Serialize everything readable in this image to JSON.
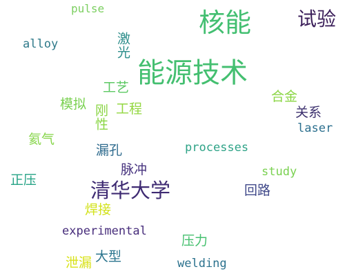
{
  "words": {
    "pulse": {
      "text": "pulse",
      "color": "#7ccf61"
    },
    "hexin": {
      "text": "核能",
      "color": "#43bf71"
    },
    "shiyan": {
      "text": "试验",
      "color": "#3b1f5a"
    },
    "alloy": {
      "text": "alloy",
      "color": "#2f7a8a"
    },
    "jiguang": {
      "text": "激光",
      "color": "#2c8d8a"
    },
    "nengyuan": {
      "text": "能源技术",
      "color": "#44bf70"
    },
    "gongyi": {
      "text": "工艺",
      "color": "#5cc863"
    },
    "hejin": {
      "text": "合金",
      "color": "#8bd646"
    },
    "moni": {
      "text": "模拟",
      "color": "#7ad151"
    },
    "gangxing": {
      "text": "刚性",
      "color": "#8bd646"
    },
    "gongcheng": {
      "text": "工程",
      "color": "#93d741"
    },
    "guanxi": {
      "text": "关系",
      "color": "#3b2f6d"
    },
    "laser": {
      "text": "laser",
      "color": "#2b6f8e"
    },
    "haiqi": {
      "text": "氦气",
      "color": "#86d549"
    },
    "processes": {
      "text": "processes",
      "color": "#2ea387"
    },
    "loukong": {
      "text": "漏孔",
      "color": "#2f6b8e"
    },
    "maichong": {
      "text": "脉冲",
      "color": "#46327e"
    },
    "study": {
      "text": "study",
      "color": "#7ad151"
    },
    "zhengya": {
      "text": "正压",
      "color": "#26a386"
    },
    "qinghua": {
      "text": "清华大学",
      "color": "#3e2a72"
    },
    "huilu": {
      "text": "回路",
      "color": "#3f4889"
    },
    "hanjie": {
      "text": "焊接",
      "color": "#d2e21b"
    },
    "experimental": {
      "text": "experimental",
      "color": "#472d7b"
    },
    "yali": {
      "text": "压力",
      "color": "#46c06f"
    },
    "xielou": {
      "text": "泄漏",
      "color": "#d8e219"
    },
    "daxing": {
      "text": "大型",
      "color": "#2b758e"
    },
    "welding": {
      "text": "welding",
      "color": "#2c728e"
    }
  }
}
